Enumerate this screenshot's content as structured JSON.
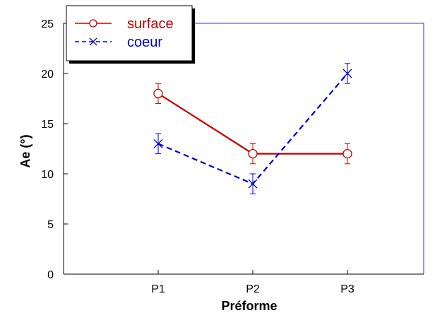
{
  "chart_data": {
    "type": "line",
    "title": "",
    "xlabel": "Préforme",
    "ylabel": "Ae (°)",
    "categories": [
      "P1",
      "P2",
      "P3"
    ],
    "ylim": [
      0,
      25
    ],
    "yticks": [
      0,
      5,
      10,
      15,
      20,
      25
    ],
    "grid": false,
    "legend_position": "top-left",
    "series": [
      {
        "name": "surface",
        "values": [
          18,
          12,
          12
        ],
        "errors": [
          1,
          1,
          1
        ],
        "color": "#c00000",
        "marker": "circle",
        "line_style": "solid"
      },
      {
        "name": "coeur",
        "values": [
          13,
          9,
          20
        ],
        "errors": [
          1,
          1,
          1
        ],
        "color": "#0000cc",
        "marker": "x",
        "line_style": "dashed"
      }
    ]
  }
}
